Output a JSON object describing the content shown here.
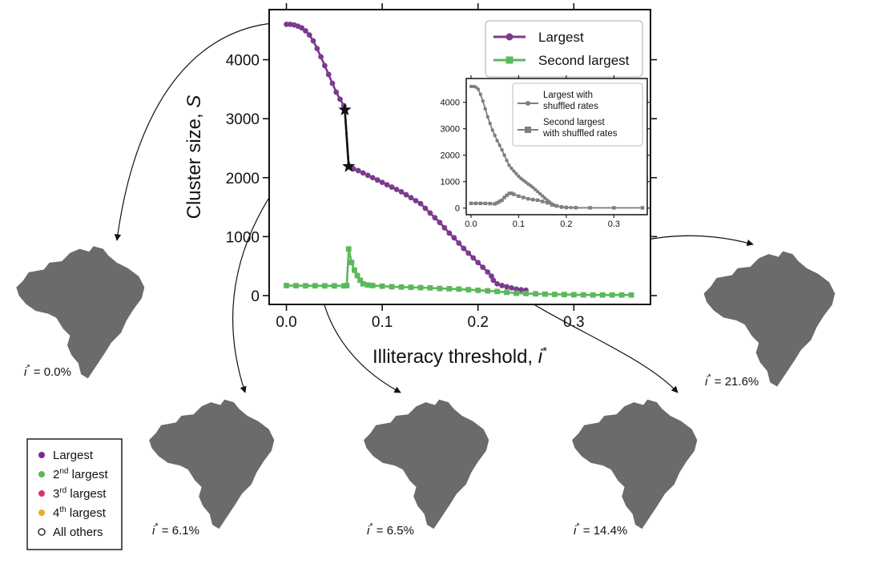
{
  "chart_data": [
    {
      "type": "line",
      "xlabel": "Illiteracy threshold,",
      "xlabel_symbol": "i",
      "xlabel_sup": "*",
      "ylabel": "Cluster size,",
      "ylabel_symbol": "S",
      "xlim": [
        -0.018,
        0.38
      ],
      "ylim": [
        -150,
        4850
      ],
      "xticks": [
        0.0,
        0.1,
        0.2,
        0.3
      ],
      "xtick_labels": [
        "0.0",
        "0.1",
        "0.2",
        "0.3"
      ],
      "yticks": [
        0,
        1000,
        2000,
        3000,
        4000
      ],
      "ytick_labels": [
        "0",
        "1000",
        "2000",
        "3000",
        "4000"
      ],
      "legend_position": "top-right",
      "series": [
        {
          "name": "Largest",
          "color": "#7b3a8f",
          "marker": "circle",
          "x": [
            0.0,
            0.004,
            0.008,
            0.012,
            0.016,
            0.02,
            0.024,
            0.028,
            0.032,
            0.036,
            0.04,
            0.044,
            0.048,
            0.052,
            0.056,
            0.06,
            0.061,
            0.065,
            0.07,
            0.075,
            0.08,
            0.085,
            0.09,
            0.095,
            0.1,
            0.105,
            0.11,
            0.115,
            0.12,
            0.125,
            0.13,
            0.135,
            0.14,
            0.145,
            0.15,
            0.155,
            0.16,
            0.165,
            0.17,
            0.175,
            0.18,
            0.185,
            0.19,
            0.195,
            0.2,
            0.205,
            0.21,
            0.214,
            0.216,
            0.22,
            0.225,
            0.23,
            0.235,
            0.24,
            0.245,
            0.25
          ],
          "y": [
            4600,
            4600,
            4590,
            4570,
            4540,
            4490,
            4420,
            4320,
            4190,
            4050,
            3900,
            3750,
            3600,
            3450,
            3330,
            3220,
            3150,
            2190,
            2150,
            2120,
            2080,
            2040,
            2000,
            1960,
            1920,
            1880,
            1840,
            1800,
            1760,
            1710,
            1660,
            1610,
            1560,
            1480,
            1400,
            1320,
            1240,
            1150,
            1060,
            980,
            890,
            800,
            720,
            640,
            560,
            480,
            400,
            330,
            260,
            200,
            170,
            150,
            130,
            110,
            100,
            90
          ]
        },
        {
          "name": "Second largest",
          "color": "#5cb85c",
          "marker": "square",
          "x": [
            0.0,
            0.01,
            0.02,
            0.03,
            0.04,
            0.05,
            0.06,
            0.063,
            0.065,
            0.068,
            0.071,
            0.074,
            0.077,
            0.08,
            0.085,
            0.09,
            0.1,
            0.11,
            0.12,
            0.13,
            0.14,
            0.15,
            0.16,
            0.17,
            0.18,
            0.19,
            0.2,
            0.21,
            0.22,
            0.23,
            0.24,
            0.25,
            0.26,
            0.27,
            0.28,
            0.29,
            0.3,
            0.31,
            0.32,
            0.33,
            0.34,
            0.35,
            0.36
          ],
          "y": [
            170,
            168,
            166,
            166,
            165,
            165,
            165,
            170,
            790,
            560,
            430,
            340,
            260,
            200,
            180,
            170,
            160,
            150,
            145,
            140,
            135,
            130,
            120,
            115,
            110,
            100,
            90,
            80,
            70,
            55,
            40,
            35,
            30,
            25,
            20,
            18,
            15,
            12,
            10,
            10,
            10,
            10,
            10
          ]
        }
      ],
      "transition": {
        "color": "#111111",
        "x": [
          0.061,
          0.065
        ],
        "y": [
          3150,
          2190
        ]
      }
    },
    {
      "type": "line",
      "xlim": [
        -0.01,
        0.37
      ],
      "ylim": [
        -250,
        4900
      ],
      "xticks": [
        0.0,
        0.1,
        0.2,
        0.3
      ],
      "xtick_labels": [
        "0.0",
        "0.1",
        "0.2",
        "0.3"
      ],
      "yticks": [
        0,
        1000,
        2000,
        3000,
        4000
      ],
      "ytick_labels": [
        "0",
        "1000",
        "2000",
        "3000",
        "4000"
      ],
      "legend_position": "top-right",
      "series": [
        {
          "name": [
            "Largest with",
            "shuffled rates"
          ],
          "color": "#7f7f7f",
          "marker": "circle",
          "x": [
            0.0,
            0.005,
            0.01,
            0.015,
            0.02,
            0.025,
            0.03,
            0.035,
            0.04,
            0.045,
            0.05,
            0.055,
            0.06,
            0.065,
            0.07,
            0.075,
            0.08,
            0.085,
            0.09,
            0.095,
            0.1,
            0.105,
            0.11,
            0.115,
            0.12,
            0.125,
            0.13,
            0.135,
            0.14,
            0.145,
            0.15,
            0.155,
            0.16,
            0.165,
            0.17,
            0.175,
            0.18,
            0.19,
            0.2,
            0.21,
            0.22,
            0.25,
            0.3,
            0.36
          ],
          "y": [
            4600,
            4600,
            4580,
            4500,
            4300,
            4050,
            3750,
            3450,
            3200,
            2950,
            2750,
            2550,
            2380,
            2200,
            2000,
            1800,
            1620,
            1500,
            1400,
            1300,
            1200,
            1120,
            1050,
            980,
            910,
            850,
            780,
            700,
            620,
            540,
            460,
            380,
            300,
            230,
            160,
            110,
            80,
            50,
            30,
            20,
            15,
            10,
            10,
            10
          ]
        },
        {
          "name": [
            "Second largest",
            "with shuffled rates"
          ],
          "color": "#7f7f7f",
          "marker": "square",
          "x": [
            0.0,
            0.01,
            0.02,
            0.03,
            0.04,
            0.05,
            0.055,
            0.06,
            0.065,
            0.07,
            0.075,
            0.08,
            0.085,
            0.09,
            0.1,
            0.11,
            0.12,
            0.13,
            0.14,
            0.15,
            0.16,
            0.17,
            0.18,
            0.19,
            0.2,
            0.22,
            0.25,
            0.3,
            0.36
          ],
          "y": [
            180,
            180,
            180,
            175,
            170,
            160,
            200,
            250,
            300,
            400,
            480,
            550,
            560,
            520,
            450,
            400,
            350,
            320,
            300,
            250,
            200,
            120,
            80,
            40,
            20,
            15,
            10,
            10,
            10
          ]
        }
      ]
    }
  ],
  "maps": [
    {
      "caption_symbol": "i",
      "caption_sup": "*",
      "caption_value": " = 0.0%"
    },
    {
      "caption_symbol": "i",
      "caption_sup": "*",
      "caption_value": " = 6.1%"
    },
    {
      "caption_symbol": "i",
      "caption_sup": "*",
      "caption_value": " = 6.5%"
    },
    {
      "caption_symbol": "i",
      "caption_sup": "*",
      "caption_value": " = 14.4%"
    },
    {
      "caption_symbol": "i",
      "caption_sup": "*",
      "caption_value": " = 21.6%"
    }
  ],
  "map_colors": {
    "land": "#6b6b6b",
    "largest": "#7b2a8e",
    "second": "#5cb85c",
    "third": "#e0307a",
    "fourth": "#f0a830",
    "others": "#ffffff"
  },
  "map_key": [
    {
      "label": "Largest",
      "color": "#7b2a8e",
      "filled": true
    },
    {
      "label": "2",
      "sup": "nd",
      "rest": " largest",
      "color": "#5cb85c",
      "filled": true
    },
    {
      "label": "3",
      "sup": "rd",
      "rest": " largest",
      "color": "#e0307a",
      "filled": true
    },
    {
      "label": "4",
      "sup": "th",
      "rest": " largest",
      "color": "#f0a830",
      "filled": true
    },
    {
      "label": "All others",
      "color": "#ffffff",
      "filled": false
    }
  ]
}
